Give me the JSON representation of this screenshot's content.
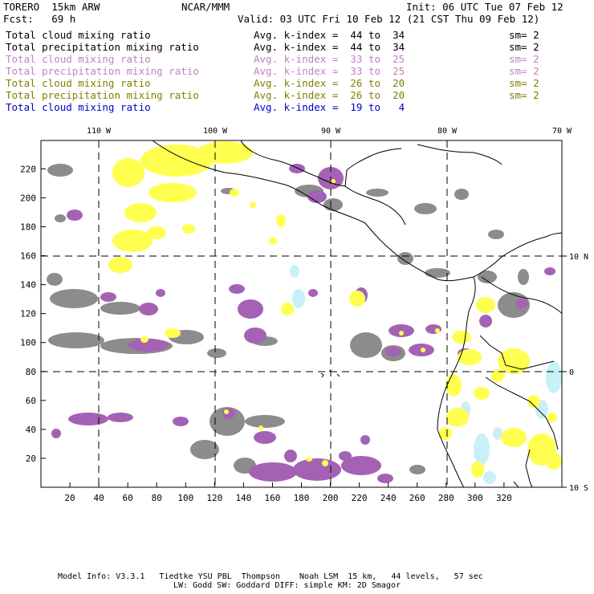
{
  "header": {
    "model": "TORERO  15km ARW",
    "center": "NCAR/MMM",
    "init": "Init: 06 UTC Tue 07 Feb 12",
    "fcst": "Fcst:   69 h",
    "valid": "Valid: 03 UTC Fri 10 Feb 12 (21 CST Thu 09 Feb 12)"
  },
  "legend": [
    {
      "field": "Total cloud mixing ratio",
      "kindex": "Avg. k-index =  44 to  34",
      "sm": "sm= 2",
      "color": "#000000"
    },
    {
      "field": "Total precipitation mixing ratio",
      "kindex": "Avg. k-index =  44 to  34",
      "sm": "sm= 2",
      "color": "#000000"
    },
    {
      "field": "Total cloud mixing ratio",
      "kindex": "Avg. k-index =  33 to  25",
      "sm": "sm= 2",
      "color": "#c080c8"
    },
    {
      "field": "Total precipitation mixing ratio",
      "kindex": "Avg. k-index =  33 to  25",
      "sm": "sm= 2",
      "color": "#c080c8"
    },
    {
      "field": "Total cloud mixing ratio",
      "kindex": "Avg. k-index =  26 to  20",
      "sm": "sm= 2",
      "color": "#808000"
    },
    {
      "field": "Total precipitation mixing ratio",
      "kindex": "Avg. k-index =  26 to  20",
      "sm": "sm= 2",
      "color": "#808000"
    },
    {
      "field": "Total cloud mixing ratio",
      "kindex": "Avg. k-index =  19 to   4",
      "sm": "",
      "color": "#0000d0"
    }
  ],
  "map": {
    "top_lon_labels": [
      "110 W",
      "100 W",
      "90 W",
      "80 W",
      "70 W"
    ],
    "right_lat_labels": [
      "10 N",
      "0",
      "10 S"
    ],
    "x_ticks": [
      "20",
      "40",
      "60",
      "80",
      "100",
      "120",
      "140",
      "160",
      "180",
      "200",
      "220",
      "240",
      "260",
      "280",
      "300",
      "320"
    ],
    "y_ticks": [
      "20",
      "40",
      "60",
      "80",
      "100",
      "120",
      "140",
      "160",
      "180",
      "200",
      "220"
    ],
    "colors": {
      "gray": "#8c8c8c",
      "purple": "#a462b4",
      "yellow": "#ffff50",
      "cyan": "#c8f0f8"
    }
  },
  "footer": {
    "line1": "Model Info: V3.3.1   Tiedtke YSU PBL  Thompson    Noah LSM  15 km,   44 levels,   57 sec",
    "line2": "LW: Godd SW: Goddard DIFF: simple KM: 2D Smagor"
  }
}
